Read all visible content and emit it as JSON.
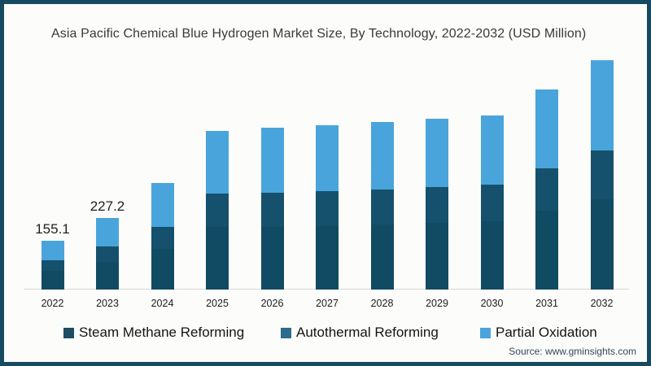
{
  "title": "Asia Pacific Chemical Blue Hydrogen Market Size, By Technology, 2022-2032 (USD Million)",
  "source": "Source: www.gminsights.com",
  "colors": {
    "frame_border": "#164a60",
    "background": "#fcfcfa",
    "axis_line": "#d8d8d8",
    "title_text": "#3a3a3a",
    "label_text": "#1c1c1c",
    "source_text": "#33475c"
  },
  "legend": [
    {
      "label": "Steam Methane Reforming",
      "color": "#1d4e63"
    },
    {
      "label": "Autothermal Reforming",
      "color": "#2f6b8a"
    },
    {
      "label": "Partial Oxidation",
      "color": "#4aa4dc"
    }
  ],
  "chart_data": {
    "type": "bar",
    "stacked": true,
    "title": "Asia Pacific Chemical Blue Hydrogen Market Size, By Technology, 2022-2032 (USD Million)",
    "unit": "USD Million",
    "categories": [
      "2022",
      "2023",
      "2024",
      "2025",
      "2026",
      "2027",
      "2028",
      "2029",
      "2030",
      "2031",
      "2032"
    ],
    "series": [
      {
        "name": "Steam Methane Reforming",
        "color": "#114a63",
        "values": [
          60,
          89,
          130,
          198,
          200,
          203,
          207,
          213,
          216,
          250,
          288
        ]
      },
      {
        "name": "Autothermal Reforming",
        "color": "#15516c",
        "values": [
          33,
          48,
          70,
          106,
          107,
          109,
          111,
          114,
          117,
          135,
          155
        ]
      },
      {
        "name": "Partial Oxidation",
        "color": "#4aa4dc",
        "values": [
          62,
          90,
          139,
          200,
          207,
          210,
          215,
          217,
          220,
          250,
          285
        ]
      }
    ],
    "totals": [
      155.1,
      227.2,
      339,
      504,
      514,
      522,
      533,
      544,
      553,
      635,
      728
    ],
    "bar_labels": [
      "155.1",
      "227.2",
      "",
      "",
      "",
      "",
      "",
      "",
      "",
      "",
      ""
    ],
    "ylim": [
      0,
      760
    ],
    "grid": false,
    "legend_position": "bottom",
    "xlabel": "",
    "ylabel": ""
  }
}
